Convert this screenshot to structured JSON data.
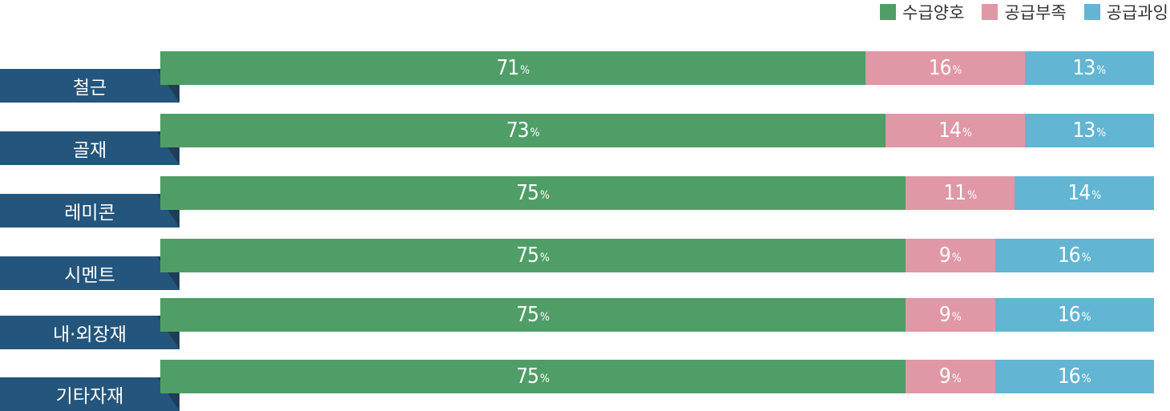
{
  "legend": [
    {
      "label": "수급양호",
      "color": "#4f9e67"
    },
    {
      "label": "공급부족",
      "color": "#e097a6"
    },
    {
      "label": "공급과잉",
      "color": "#62b5d3"
    }
  ],
  "chart_data": {
    "type": "bar",
    "orientation": "horizontal",
    "stacked": true,
    "categories": [
      "철근",
      "골재",
      "레미콘",
      "시멘트",
      "내·외장재",
      "기타자재"
    ],
    "series": [
      {
        "name": "수급양호",
        "values": [
          71,
          73,
          75,
          75,
          75,
          75
        ]
      },
      {
        "name": "공급부족",
        "values": [
          16,
          14,
          11,
          9,
          9,
          9
        ]
      },
      {
        "name": "공급과잉",
        "values": [
          13,
          13,
          14,
          16,
          16,
          16
        ]
      }
    ],
    "unit": "%",
    "xlim": [
      0,
      100
    ],
    "legend_position": "top-right"
  }
}
